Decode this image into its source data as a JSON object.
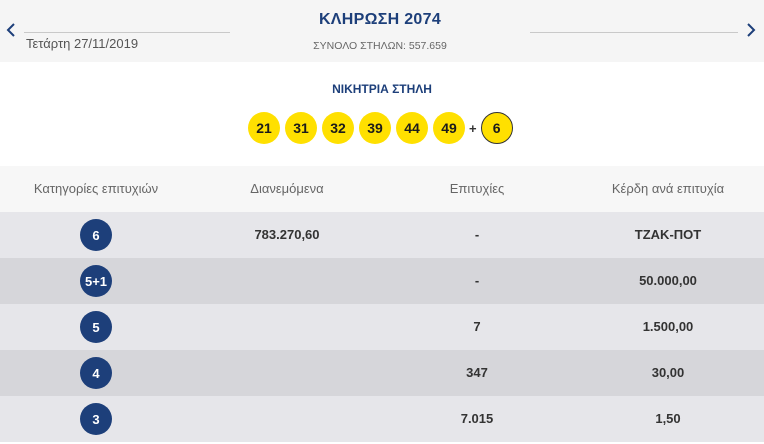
{
  "header": {
    "draw_title": "ΚΛΗΡΩΣΗ 2074",
    "date": "Τετάρτη 27/11/2019",
    "total_columns": "ΣΥΝΟΛΟ ΣΤΗΛΩΝ: 557.659",
    "prev_icon": "chevron-left-icon",
    "next_icon": "chevron-right-icon"
  },
  "winning": {
    "title": "ΝΙΚΗΤΡΙΑ ΣΤΗΛΗ",
    "numbers": [
      "21",
      "31",
      "32",
      "39",
      "44",
      "49"
    ],
    "plus": "+",
    "bonus": "6"
  },
  "table": {
    "headers": [
      "Κατηγορίες επιτυχιών",
      "Διανεμόμενα",
      "Επιτυχίες",
      "Κέρδη ανά επιτυχία"
    ],
    "rows": [
      {
        "category": "6",
        "distributed": "783.270,60",
        "winners": "-",
        "prize": "ΤΖΑΚ-ΠΟΤ"
      },
      {
        "category": "5+1",
        "distributed": "",
        "winners": "-",
        "prize": "50.000,00"
      },
      {
        "category": "5",
        "distributed": "",
        "winners": "7",
        "prize": "1.500,00"
      },
      {
        "category": "4",
        "distributed": "",
        "winners": "347",
        "prize": "30,00"
      },
      {
        "category": "3",
        "distributed": "",
        "winners": "7.015",
        "prize": "1,50"
      }
    ]
  },
  "colors": {
    "brand_blue": "#1d3f7a",
    "ball_yellow": "#ffe000"
  }
}
